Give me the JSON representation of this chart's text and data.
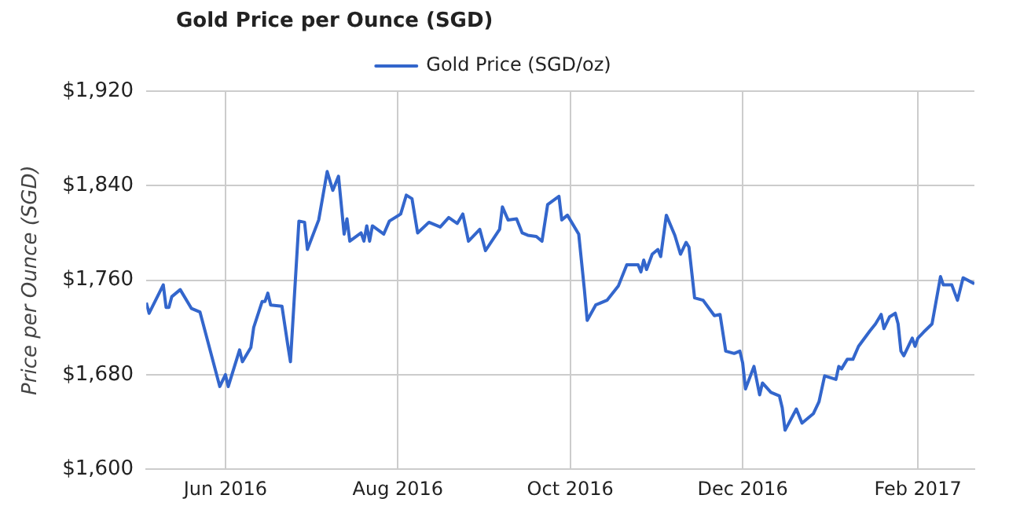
{
  "chart_data": {
    "type": "line",
    "title": "Gold Price per Ounce (SGD)",
    "ylabel": "Price per Ounce (SGD)",
    "x": [
      "2016-05-04",
      "2016-05-05",
      "2016-05-10",
      "2016-05-11",
      "2016-05-12",
      "2016-05-13",
      "2016-05-16",
      "2016-05-20",
      "2016-05-23",
      "2016-05-30",
      "2016-06-01",
      "2016-06-02",
      "2016-06-06",
      "2016-06-07",
      "2016-06-10",
      "2016-06-11",
      "2016-06-14",
      "2016-06-15",
      "2016-06-16",
      "2016-06-17",
      "2016-06-21",
      "2016-06-23",
      "2016-06-24",
      "2016-06-27",
      "2016-06-29",
      "2016-06-30",
      "2016-07-04",
      "2016-07-07",
      "2016-07-09",
      "2016-07-11",
      "2016-07-13",
      "2016-07-14",
      "2016-07-15",
      "2016-07-19",
      "2016-07-20",
      "2016-07-21",
      "2016-07-22",
      "2016-07-23",
      "2016-07-27",
      "2016-07-29",
      "2016-08-02",
      "2016-08-04",
      "2016-08-06",
      "2016-08-08",
      "2016-08-12",
      "2016-08-16",
      "2016-08-19",
      "2016-08-22",
      "2016-08-24",
      "2016-08-26",
      "2016-08-30",
      "2016-09-01",
      "2016-09-06",
      "2016-09-07",
      "2016-09-09",
      "2016-09-12",
      "2016-09-14",
      "2016-09-16",
      "2016-09-19",
      "2016-09-21",
      "2016-09-23",
      "2016-09-27",
      "2016-09-28",
      "2016-09-30",
      "2016-10-04",
      "2016-10-06",
      "2016-10-07",
      "2016-10-10",
      "2016-10-14",
      "2016-10-18",
      "2016-10-21",
      "2016-10-25",
      "2016-10-26",
      "2016-10-27",
      "2016-10-28",
      "2016-10-30",
      "2016-11-01",
      "2016-11-02",
      "2016-11-04",
      "2016-11-07",
      "2016-11-09",
      "2016-11-11",
      "2016-11-12",
      "2016-11-14",
      "2016-11-17",
      "2016-11-21",
      "2016-11-23",
      "2016-11-25",
      "2016-11-28",
      "2016-11-30",
      "2016-12-01",
      "2016-12-02",
      "2016-12-05",
      "2016-12-07",
      "2016-12-08",
      "2016-12-11",
      "2016-12-14",
      "2016-12-15",
      "2016-12-16",
      "2016-12-20",
      "2016-12-22",
      "2016-12-26",
      "2016-12-28",
      "2016-12-30",
      "2017-01-03",
      "2017-01-04",
      "2017-01-05",
      "2017-01-07",
      "2017-01-09",
      "2017-01-11",
      "2017-01-15",
      "2017-01-17",
      "2017-01-19",
      "2017-01-20",
      "2017-01-22",
      "2017-01-24",
      "2017-01-25",
      "2017-01-26",
      "2017-01-27",
      "2017-01-30",
      "2017-01-31",
      "2017-02-01",
      "2017-02-03",
      "2017-02-06",
      "2017-02-09",
      "2017-02-10",
      "2017-02-13",
      "2017-02-15",
      "2017-02-17",
      "2017-02-21"
    ],
    "series": [
      {
        "name": "Gold Price (SGD/oz)",
        "color": "#3366cc",
        "values": [
          1741,
          1732,
          1756,
          1737,
          1737,
          1746,
          1752,
          1736,
          1733,
          1670,
          1680,
          1670,
          1701,
          1691,
          1703,
          1720,
          1742,
          1742,
          1749,
          1739,
          1738,
          1706,
          1691,
          1810,
          1809,
          1786,
          1811,
          1852,
          1836,
          1848,
          1799,
          1812,
          1793,
          1800,
          1793,
          1806,
          1793,
          1806,
          1799,
          1810,
          1816,
          1832,
          1829,
          1800,
          1809,
          1805,
          1813,
          1808,
          1816,
          1793,
          1803,
          1785,
          1803,
          1822,
          1811,
          1812,
          1800,
          1798,
          1797,
          1793,
          1824,
          1831,
          1811,
          1815,
          1799,
          1752,
          1726,
          1739,
          1743,
          1755,
          1773,
          1773,
          1767,
          1777,
          1769,
          1782,
          1786,
          1780,
          1815,
          1798,
          1782,
          1792,
          1788,
          1745,
          1743,
          1730,
          1731,
          1700,
          1698,
          1700,
          1690,
          1668,
          1687,
          1663,
          1673,
          1665,
          1662,
          1652,
          1633,
          1651,
          1639,
          1647,
          1657,
          1679,
          1676,
          1687,
          1685,
          1693,
          1693,
          1704,
          1717,
          1723,
          1731,
          1719,
          1729,
          1732,
          1723,
          1700,
          1696,
          1711,
          1704,
          1711,
          1716,
          1723,
          1763,
          1756,
          1756,
          1743,
          1762,
          1757
        ]
      }
    ],
    "xlim": [
      "2016-05-04",
      "2017-02-21"
    ],
    "xticks": [
      {
        "value": "2016-06-01",
        "label": "Jun 2016"
      },
      {
        "value": "2016-08-01",
        "label": "Aug 2016"
      },
      {
        "value": "2016-10-01",
        "label": "Oct 2016"
      },
      {
        "value": "2016-12-01",
        "label": "Dec 2016"
      },
      {
        "value": "2017-02-01",
        "label": "Feb 2017"
      }
    ],
    "ylim": [
      1600,
      1920
    ],
    "yticks": [
      {
        "value": 1600,
        "label": "$1,600"
      },
      {
        "value": 1680,
        "label": "$1,680"
      },
      {
        "value": 1760,
        "label": "$1,760"
      },
      {
        "value": 1840,
        "label": "$1,840"
      },
      {
        "value": 1920,
        "label": "$1,920"
      }
    ],
    "grid": true,
    "legend": "top",
    "marker": "none",
    "line_style": "solid"
  }
}
